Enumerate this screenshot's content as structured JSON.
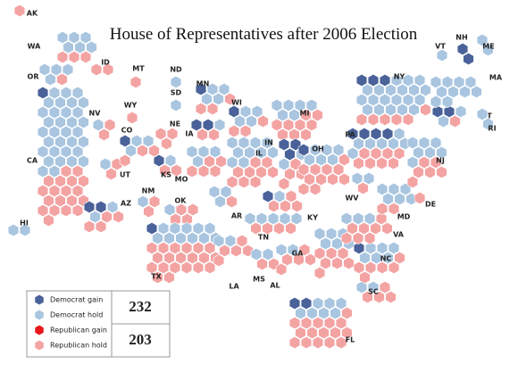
{
  "title": "House of Representatives after 2006 Election",
  "legend": [
    {
      "name": "Democrat gain",
      "color": "#4a6299"
    },
    {
      "name": "Democrat hold",
      "color": "#a9c5e0"
    },
    {
      "name": "Republican gain",
      "color": "#e8191b"
    },
    {
      "name": "Republican hold",
      "color": "#f4a3a3"
    }
  ],
  "totals": {
    "democrat": 232,
    "republican": 203
  },
  "states": [
    {
      "label": "AK",
      "seats": [
        0,
        0,
        0,
        1
      ]
    },
    {
      "label": "WA",
      "seats": [
        0,
        6,
        0,
        3
      ]
    },
    {
      "label": "OR",
      "seats": [
        0,
        4,
        0,
        1
      ]
    },
    {
      "label": "CA",
      "seats": [
        1,
        33,
        0,
        19
      ]
    },
    {
      "label": "NV",
      "seats": [
        0,
        1,
        0,
        2
      ]
    },
    {
      "label": "ID",
      "seats": [
        0,
        0,
        0,
        2
      ]
    },
    {
      "label": "MT",
      "seats": [
        0,
        0,
        0,
        1
      ]
    },
    {
      "label": "WY",
      "seats": [
        0,
        0,
        0,
        1
      ]
    },
    {
      "label": "UT",
      "seats": [
        0,
        1,
        0,
        2
      ]
    },
    {
      "label": "AZ",
      "seats": [
        2,
        2,
        0,
        4
      ]
    },
    {
      "label": "NM",
      "seats": [
        0,
        1,
        0,
        2
      ]
    },
    {
      "label": "CO",
      "seats": [
        1,
        3,
        0,
        3
      ]
    },
    {
      "label": "ND",
      "seats": [
        0,
        1,
        0,
        0
      ]
    },
    {
      "label": "SD",
      "seats": [
        0,
        1,
        0,
        0
      ]
    },
    {
      "label": "NE",
      "seats": [
        0,
        0,
        0,
        3
      ]
    },
    {
      "label": "KS",
      "seats": [
        1,
        1,
        0,
        2
      ]
    },
    {
      "label": "OK",
      "seats": [
        0,
        1,
        0,
        4
      ]
    },
    {
      "label": "TX",
      "seats": [
        1,
        11,
        0,
        20
      ]
    },
    {
      "label": "MN",
      "seats": [
        1,
        4,
        0,
        3
      ]
    },
    {
      "label": "IA",
      "seats": [
        2,
        1,
        0,
        2
      ]
    },
    {
      "label": "MO",
      "seats": [
        0,
        4,
        0,
        5
      ]
    },
    {
      "label": "AR",
      "seats": [
        0,
        3,
        0,
        1
      ]
    },
    {
      "label": "LA",
      "seats": [
        0,
        2,
        0,
        5
      ]
    },
    {
      "label": "WI",
      "seats": [
        1,
        4,
        0,
        3
      ]
    },
    {
      "label": "IL",
      "seats": [
        0,
        10,
        0,
        9
      ]
    },
    {
      "label": "MI",
      "seats": [
        0,
        6,
        0,
        9
      ]
    },
    {
      "label": "IN",
      "seats": [
        3,
        2,
        0,
        4
      ]
    },
    {
      "label": "OH",
      "seats": [
        1,
        6,
        0,
        11
      ]
    },
    {
      "label": "KY",
      "seats": [
        1,
        1,
        0,
        4
      ]
    },
    {
      "label": "TN",
      "seats": [
        0,
        5,
        0,
        4
      ]
    },
    {
      "label": "MS",
      "seats": [
        0,
        2,
        0,
        2
      ]
    },
    {
      "label": "AL",
      "seats": [
        0,
        2,
        0,
        5
      ]
    },
    {
      "label": "GA",
      "seats": [
        0,
        6,
        0,
        7
      ]
    },
    {
      "label": "FL",
      "seats": [
        2,
        7,
        0,
        16
      ]
    },
    {
      "label": "SC",
      "seats": [
        0,
        2,
        0,
        4
      ]
    },
    {
      "label": "NC",
      "seats": [
        1,
        6,
        0,
        6
      ]
    },
    {
      "label": "VA",
      "seats": [
        0,
        3,
        0,
        8
      ]
    },
    {
      "label": "WV",
      "seats": [
        0,
        2,
        0,
        1
      ]
    },
    {
      "label": "MD",
      "seats": [
        0,
        6,
        0,
        2
      ]
    },
    {
      "label": "DE",
      "seats": [
        0,
        0,
        0,
        1
      ]
    },
    {
      "label": "PA",
      "seats": [
        4,
        7,
        0,
        8
      ]
    },
    {
      "label": "NJ",
      "seats": [
        0,
        7,
        0,
        6
      ]
    },
    {
      "label": "NY",
      "seats": [
        3,
        20,
        0,
        6
      ]
    },
    {
      "label": "CT",
      "seats": [
        2,
        2,
        0,
        1
      ]
    },
    {
      "label": "RI",
      "seats": [
        0,
        2,
        0,
        0
      ]
    },
    {
      "label": "MA",
      "seats": [
        0,
        10,
        0,
        0
      ]
    },
    {
      "label": "VT",
      "seats": [
        0,
        1,
        0,
        0
      ]
    },
    {
      "label": "NH",
      "seats": [
        2,
        0,
        0,
        0
      ]
    },
    {
      "label": "ME",
      "seats": [
        0,
        2,
        0,
        0
      ]
    },
    {
      "label": "HI",
      "seats": [
        0,
        2,
        0,
        0
      ]
    }
  ]
}
